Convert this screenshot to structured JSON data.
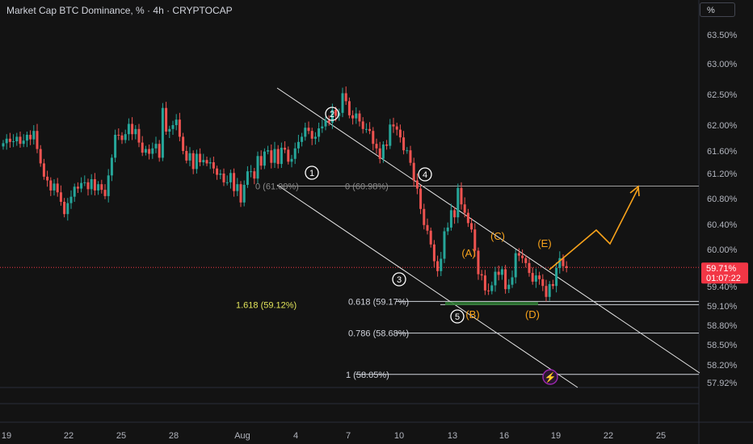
{
  "header": {
    "title": "Market Cap BTC Dominance, % · 4h · CRYPTOCAP",
    "scale_button": "%"
  },
  "colors": {
    "background": "#131313",
    "up_candle": "#26a69a",
    "down_candle": "#ef5350",
    "wave": "#ffffff",
    "orange": "#f7a21b",
    "fib_yellow": "#e2e45a",
    "current_price_bg": "#f23645",
    "lightning": "#9c27b0"
  },
  "chart_data": {
    "type": "candlestick",
    "y_axis": {
      "unit": "%",
      "ticks": [
        "63.50%",
        "63.00%",
        "62.50%",
        "62.00%",
        "61.60%",
        "61.20%",
        "60.80%",
        "60.40%",
        "60.00%",
        "59.40%",
        "59.10%",
        "58.80%",
        "58.50%",
        "58.20%",
        "57.92%"
      ]
    },
    "x_axis": {
      "ticks": [
        "19",
        "22",
        "25",
        "28",
        "Aug",
        "4",
        "7",
        "10",
        "13",
        "16",
        "19",
        "22",
        "25"
      ]
    },
    "current_price": {
      "label": "59.71%",
      "countdown": "01:07:22",
      "value": 59.71
    },
    "closes": [
      61.72,
      61.79,
      61.74,
      61.75,
      61.82,
      61.71,
      61.76,
      61.85,
      61.78,
      61.91,
      61.63,
      61.38,
      61.15,
      61.09,
      60.93,
      61.04,
      60.9,
      60.75,
      60.56,
      60.73,
      60.83,
      60.99,
      60.96,
      61.05,
      61.06,
      60.95,
      61.11,
      60.93,
      61.03,
      60.94,
      60.84,
      61.17,
      61.48,
      61.85,
      61.84,
      61.77,
      61.86,
      62.02,
      61.86,
      61.94,
      61.73,
      61.57,
      61.63,
      61.55,
      61.64,
      61.71,
      61.48,
      62.28,
      61.9,
      61.94,
      62.0,
      62.09,
      61.82,
      61.6,
      61.43,
      61.56,
      61.28,
      61.55,
      61.4,
      61.44,
      61.38,
      61.4,
      61.29,
      61.18,
      61.2,
      61.06,
      61.06,
      61.21,
      60.92,
      61.03,
      60.74,
      61.02,
      61.24,
      61.24,
      61.12,
      61.51,
      61.34,
      61.59,
      61.61,
      61.39,
      61.63,
      61.37,
      61.65,
      61.62,
      61.41,
      61.46,
      61.64,
      61.74,
      61.82,
      61.96,
      61.91,
      61.79,
      61.82,
      61.95,
      61.98,
      62.08,
      62.04,
      62.25,
      62.15,
      62.2,
      62.52,
      62.39,
      62.16,
      62.11,
      62.19,
      62.06,
      61.94,
      61.94,
      61.91,
      61.71,
      61.64,
      61.46,
      61.7,
      61.68,
      62.01,
      61.98,
      61.93,
      61.81,
      61.61,
      61.61,
      61.39,
      61.09,
      60.96,
      60.64,
      60.39,
      60.3,
      60.08,
      59.81,
      59.65,
      59.85,
      60.29,
      60.35,
      60.62,
      60.51,
      60.97,
      60.71,
      60.58,
      60.42,
      60.32,
      59.98,
      59.6,
      59.58,
      59.34,
      59.33,
      59.42,
      59.64,
      59.59,
      59.68,
      59.36,
      59.43,
      59.55,
      59.94,
      59.9,
      59.86,
      59.78,
      59.62,
      59.48,
      59.58,
      59.52,
      59.41,
      59.24,
      59.44,
      59.41,
      59.7,
      59.86,
      59.73,
      59.7
    ],
    "elliott_wave_labels": [
      {
        "label": "1",
        "color": "white"
      },
      {
        "label": "2",
        "color": "white"
      },
      {
        "label": "3",
        "color": "white"
      },
      {
        "label": "4",
        "color": "white"
      },
      {
        "label": "5",
        "color": "white"
      },
      {
        "label": "(A)",
        "color": "orange"
      },
      {
        "label": "(B)",
        "color": "orange"
      },
      {
        "label": "(C)",
        "color": "orange"
      },
      {
        "label": "(D)",
        "color": "orange"
      },
      {
        "label": "(E)",
        "color": "orange"
      }
    ],
    "fib_levels": [
      {
        "label": "0 (61.00%)",
        "value": 61.0
      },
      {
        "label": "0 (60.98%)",
        "value": 60.98
      },
      {
        "label": "0.618 (59.17%)",
        "value": 59.17
      },
      {
        "label": "1.618 (59.12%)",
        "value": 59.12
      },
      {
        "label": "0.786 (58.68%)",
        "value": 58.68
      },
      {
        "label": "1 (58.05%)",
        "value": 58.05
      }
    ],
    "grid": false
  }
}
